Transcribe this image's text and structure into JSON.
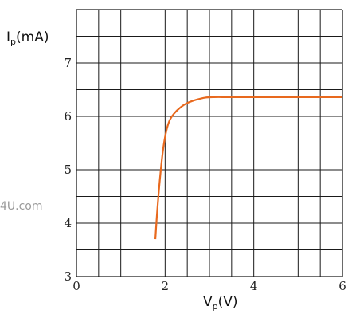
{
  "chart_data": {
    "type": "line",
    "xlabel": {
      "main": "V",
      "sub": "p",
      "unit": "(V)"
    },
    "ylabel": {
      "main": "I",
      "sub": "p",
      "unit": "(mA)"
    },
    "xlim": [
      0,
      6
    ],
    "ylim": [
      3,
      8
    ],
    "x_ticks": [
      0,
      2,
      4,
      6
    ],
    "y_ticks": [
      3,
      4,
      5,
      6,
      7
    ],
    "x_tick_labels": [
      "0",
      "2",
      "4",
      "6"
    ],
    "y_tick_labels": [
      "3",
      "4",
      "5",
      "6",
      "7"
    ],
    "grid": true,
    "grid_step_x": 0.5,
    "grid_step_y": 0.5,
    "series": [
      {
        "color": "#e8691e",
        "x": [
          1.78,
          1.82,
          1.88,
          1.95,
          2.02,
          2.1,
          2.2,
          2.35,
          2.5,
          2.7,
          2.9,
          3.1,
          3.5,
          4.5,
          6.0
        ],
        "y": [
          3.7,
          4.2,
          4.8,
          5.35,
          5.7,
          5.92,
          6.05,
          6.17,
          6.25,
          6.31,
          6.35,
          6.36,
          6.36,
          6.36,
          6.36
        ]
      }
    ]
  },
  "watermark": "4U.com"
}
